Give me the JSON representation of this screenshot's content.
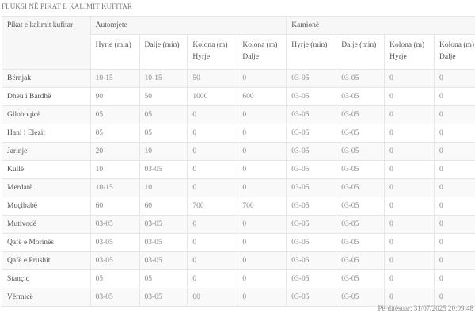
{
  "title": "FLUKSI NË PIKAT E KALIMIT KUFITAR",
  "table": {
    "row_header": "Pikat e kalimit kufitar",
    "groups": [
      "Automjete",
      "Kamionë"
    ],
    "subheaders": [
      "Hyrje (min)",
      "Dalje (min)",
      "Kolona (m) Hyrje",
      "Kolona (m) Dalje",
      "Hyrje (min)",
      "Dalje (min)",
      "Kolona (m) Hyrje",
      "Kolona (m) Dalje"
    ],
    "rows": [
      [
        "Bërnjak",
        "10-15",
        "10-15",
        "50",
        "0",
        "03-05",
        "03-05",
        "0",
        "0"
      ],
      [
        "Dheu i Bardhë",
        "90",
        "50",
        "1000",
        "600",
        "03-05",
        "03-05",
        "0",
        "0"
      ],
      [
        "Gllobоqicë",
        "05",
        "05",
        "0",
        "0",
        "03-05",
        "03-05",
        "0",
        "0"
      ],
      [
        "Hani i Elezit",
        "05",
        "05",
        "0",
        "0",
        "03-05",
        "03-05",
        "0",
        "0"
      ],
      [
        "Jarinje",
        "20",
        "10",
        "0",
        "0",
        "03-05",
        "03-05",
        "0",
        "0"
      ],
      [
        "Kullë",
        "10",
        "03-05",
        "0",
        "0",
        "03-05",
        "03-05",
        "0",
        "0"
      ],
      [
        "Merdarë",
        "10-15",
        "10",
        "0",
        "0",
        "03-05",
        "03-05",
        "0",
        "0"
      ],
      [
        "Muçibabë",
        "60",
        "60",
        "700",
        "700",
        "03-05",
        "03-05",
        "0",
        "0"
      ],
      [
        "Mutivodë",
        "03-05",
        "03-05",
        "0",
        "0",
        "03-05",
        "03-05",
        "0",
        "0"
      ],
      [
        "Qafë e Morinës",
        "03-05",
        "03-05",
        "0",
        "0",
        "03-05",
        "03-05",
        "0",
        "0"
      ],
      [
        "Qafë e Prushit",
        "03-05",
        "03-05",
        "0",
        "0",
        "03-05",
        "03-05",
        "0",
        "0"
      ],
      [
        "Stançiq",
        "05",
        "05",
        "0",
        "0",
        "03-05",
        "03-05",
        "0",
        "0"
      ],
      [
        "Vërmicë",
        "03-05",
        "03-05",
        "00",
        "0",
        "03-05",
        "03-05",
        "0",
        "0"
      ]
    ]
  },
  "footer": "Përditësuar: 31/07/2025 20:09:48"
}
